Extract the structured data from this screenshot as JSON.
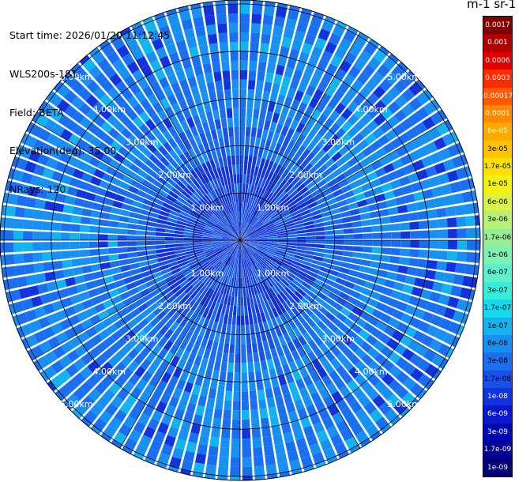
{
  "info": {
    "start_time": "Start time: 2026/01/20 11:12:45",
    "instrument": "WLS200s-181",
    "field": "Field: BETA",
    "elevation": "Elevation(deg): 35.00",
    "nrays": "NRays: 120"
  },
  "colorbar": {
    "title": "m-1 sr-1",
    "labels": [
      "0.0017",
      "0.001",
      "0.0006",
      "0.0003",
      "0.00017",
      "0.0001",
      "6e-05",
      "3e-05",
      "1.7e-05",
      "1e-05",
      "6e-06",
      "3e-06",
      "1.7e-06",
      "1e-06",
      "6e-07",
      "3e-07",
      "1.7e-07",
      "1e-07",
      "6e-08",
      "3e-08",
      "1.7e-08",
      "1e-08",
      "6e-09",
      "3e-09",
      "1.7e-09",
      "1e-09"
    ],
    "colors": [
      "#7f0000",
      "#b20000",
      "#e00000",
      "#ff2a00",
      "#ff5a00",
      "#ff8a00",
      "#ffa800",
      "#ffc400",
      "#ffe000",
      "#f2f210",
      "#d8f24a",
      "#b8f07a",
      "#98ee96",
      "#7ef0b0",
      "#5cf0cc",
      "#38ecdc",
      "#18d8ee",
      "#12b4f0",
      "#1890f2",
      "#1a6ef0",
      "#1850e8",
      "#1232dc",
      "#0a18cc",
      "#0008b4",
      "#000494",
      "#000070"
    ]
  },
  "chart_data": {
    "type": "heatmap",
    "projection": "polar (PPI)",
    "field": "BETA",
    "elevation_deg": 35.0,
    "nrays": 120,
    "range_rings_km": [
      1.0,
      2.0,
      3.0,
      4.0,
      5.0
    ],
    "ring_labels": [
      "1.00km",
      "2.00km",
      "3.00km",
      "4.00km",
      "5.00km"
    ],
    "dominant_value_range": [
      "1e-08",
      "3e-08"
    ],
    "center_value_range": [
      "1e-09",
      "6e-09"
    ],
    "colorscale_min": "1e-09",
    "colorscale_max": "0.0017",
    "grid": true
  }
}
